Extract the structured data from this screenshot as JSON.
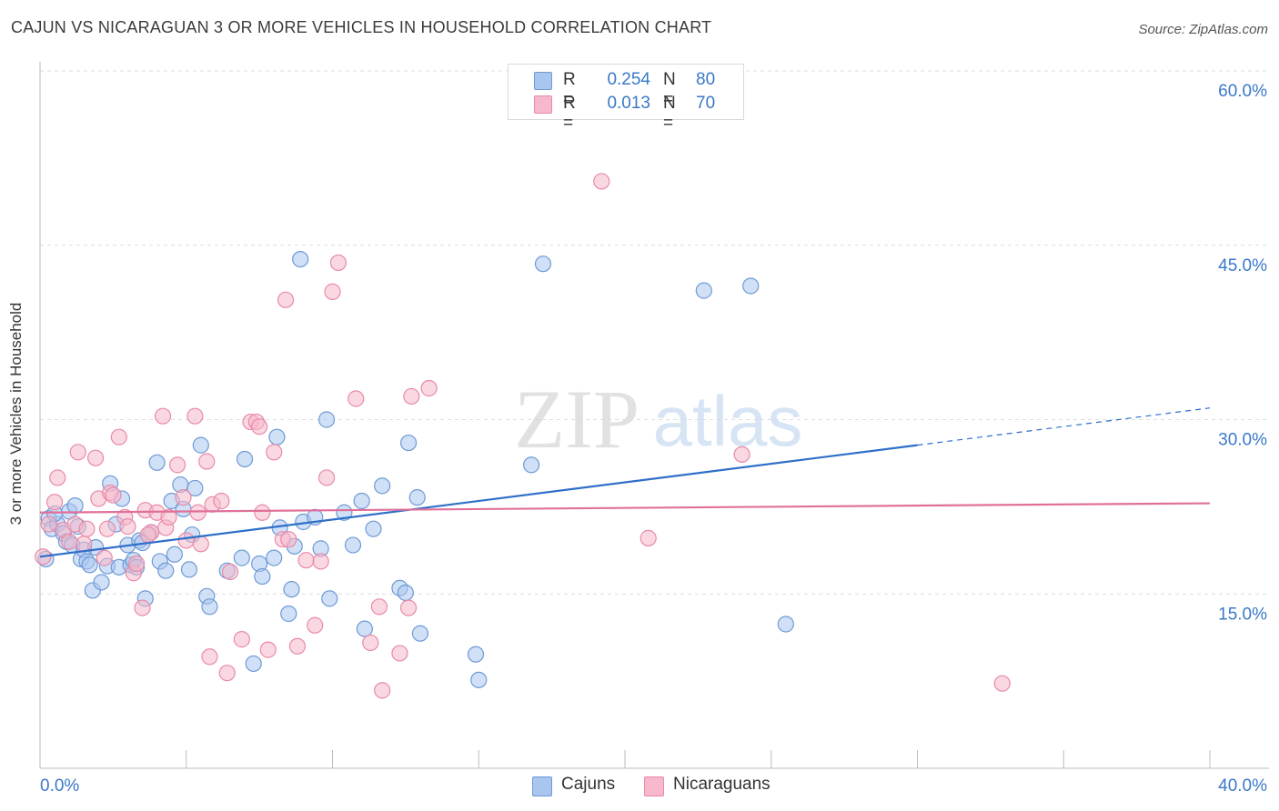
{
  "header": {
    "title": "CAJUN VS NICARAGUAN 3 OR MORE VEHICLES IN HOUSEHOLD CORRELATION CHART",
    "source": "Source: ZipAtlas.com"
  },
  "watermark": {
    "zip": "ZIP",
    "atlas": "atlas"
  },
  "legend": {
    "rows": [
      {
        "r_label": "R =",
        "r_value": "0.254",
        "n_label": "N =",
        "n_value": "80",
        "color": "#a9c6ef"
      },
      {
        "r_label": "R =",
        "r_value": "0.013",
        "n_label": "N =",
        "n_value": "70",
        "color": "#f6b8ca"
      }
    ]
  },
  "colors": {
    "cajun_fill": "#a9c6ef",
    "cajun_stroke": "#6f9ad6",
    "cajun_line": "#2f6fc9",
    "nicaraguan_fill": "#f6b8ca",
    "nicaraguan_stroke": "#e88aa8",
    "nicaraguan_line": "#e0709a",
    "axis_text": "#3a78c9",
    "grid": "#dcdcdc"
  },
  "chart_data": {
    "type": "scatter",
    "title": "CAJUN VS NICARAGUAN 3 OR MORE VEHICLES IN HOUSEHOLD CORRELATION CHART",
    "ylabel": "3 or more Vehicles in Household",
    "xlabel": "",
    "xlim": [
      0,
      40
    ],
    "ylim": [
      0,
      60
    ],
    "x_tick_labels": [
      "0.0%",
      "40.0%"
    ],
    "y_ticks": [
      15,
      30,
      45,
      60
    ],
    "y_tick_labels": [
      "15.0%",
      "30.0%",
      "45.0%",
      "60.0%"
    ],
    "grid": true,
    "legend_position": "top-center",
    "series": [
      {
        "name": "Cajuns",
        "trend": {
          "x0": 0,
          "y0": 18.2,
          "x1": 30,
          "y1": 27.8,
          "dash_to_x": 40,
          "dash_to_y": 31.0
        },
        "points": [
          [
            0.2,
            18.0
          ],
          [
            0.3,
            21.5
          ],
          [
            0.4,
            20.6
          ],
          [
            0.6,
            21.0
          ],
          [
            0.8,
            20.2
          ],
          [
            0.9,
            19.5
          ],
          [
            1.0,
            22.1
          ],
          [
            1.1,
            19.2
          ],
          [
            1.2,
            22.6
          ],
          [
            1.4,
            18.0
          ],
          [
            1.5,
            18.8
          ],
          [
            1.6,
            17.8
          ],
          [
            1.7,
            17.5
          ],
          [
            1.8,
            15.3
          ],
          [
            1.9,
            19.0
          ],
          [
            2.1,
            16.0
          ],
          [
            2.3,
            17.4
          ],
          [
            2.4,
            24.5
          ],
          [
            2.6,
            21.0
          ],
          [
            2.7,
            17.3
          ],
          [
            2.8,
            23.2
          ],
          [
            3.0,
            19.2
          ],
          [
            3.1,
            17.5
          ],
          [
            3.2,
            17.9
          ],
          [
            3.3,
            17.3
          ],
          [
            3.4,
            19.6
          ],
          [
            3.6,
            14.6
          ],
          [
            3.8,
            20.3
          ],
          [
            4.0,
            26.3
          ],
          [
            4.1,
            17.8
          ],
          [
            4.3,
            17.0
          ],
          [
            4.5,
            23.0
          ],
          [
            4.6,
            18.4
          ],
          [
            4.8,
            24.4
          ],
          [
            4.9,
            22.3
          ],
          [
            5.1,
            17.1
          ],
          [
            5.3,
            24.1
          ],
          [
            5.5,
            27.8
          ],
          [
            5.7,
            14.8
          ],
          [
            5.8,
            13.9
          ],
          [
            6.4,
            17.0
          ],
          [
            6.9,
            18.1
          ],
          [
            7.0,
            26.6
          ],
          [
            7.3,
            9.0
          ],
          [
            7.5,
            17.6
          ],
          [
            7.6,
            16.5
          ],
          [
            8.0,
            18.1
          ],
          [
            8.1,
            28.5
          ],
          [
            8.2,
            20.7
          ],
          [
            8.5,
            13.3
          ],
          [
            8.6,
            15.4
          ],
          [
            8.7,
            19.1
          ],
          [
            8.9,
            43.8
          ],
          [
            9.0,
            21.2
          ],
          [
            9.4,
            21.6
          ],
          [
            9.6,
            18.9
          ],
          [
            9.8,
            30.0
          ],
          [
            9.9,
            14.6
          ],
          [
            10.4,
            22.0
          ],
          [
            10.7,
            19.2
          ],
          [
            11.0,
            23.0
          ],
          [
            11.1,
            12.0
          ],
          [
            11.4,
            20.6
          ],
          [
            11.7,
            24.3
          ],
          [
            12.3,
            15.5
          ],
          [
            12.5,
            15.1
          ],
          [
            12.6,
            28.0
          ],
          [
            12.9,
            23.3
          ],
          [
            13.0,
            11.6
          ],
          [
            14.9,
            9.8
          ],
          [
            15.0,
            7.6
          ],
          [
            16.8,
            26.1
          ],
          [
            17.2,
            43.4
          ],
          [
            22.7,
            41.1
          ],
          [
            24.3,
            41.5
          ],
          [
            25.5,
            12.4
          ],
          [
            0.5,
            21.9
          ],
          [
            1.3,
            20.8
          ],
          [
            3.5,
            19.4
          ],
          [
            5.2,
            20.1
          ]
        ]
      },
      {
        "name": "Nicaraguans",
        "trend": {
          "x0": 0,
          "y0": 22.0,
          "x1": 40,
          "y1": 22.8
        },
        "points": [
          [
            0.1,
            18.2
          ],
          [
            0.3,
            21.0
          ],
          [
            0.5,
            22.9
          ],
          [
            0.6,
            25.0
          ],
          [
            0.8,
            20.5
          ],
          [
            1.0,
            19.5
          ],
          [
            1.2,
            21.0
          ],
          [
            1.3,
            27.2
          ],
          [
            1.5,
            19.3
          ],
          [
            1.6,
            20.6
          ],
          [
            1.9,
            26.7
          ],
          [
            2.0,
            23.2
          ],
          [
            2.2,
            18.1
          ],
          [
            2.3,
            20.6
          ],
          [
            2.4,
            23.7
          ],
          [
            2.5,
            23.5
          ],
          [
            2.7,
            28.5
          ],
          [
            2.9,
            21.6
          ],
          [
            3.0,
            20.8
          ],
          [
            3.2,
            16.8
          ],
          [
            3.3,
            17.6
          ],
          [
            3.5,
            13.8
          ],
          [
            3.6,
            22.2
          ],
          [
            3.8,
            20.3
          ],
          [
            4.0,
            22.0
          ],
          [
            4.2,
            30.3
          ],
          [
            4.3,
            20.7
          ],
          [
            4.4,
            21.6
          ],
          [
            4.7,
            26.1
          ],
          [
            4.9,
            23.3
          ],
          [
            5.0,
            19.6
          ],
          [
            5.3,
            30.3
          ],
          [
            5.4,
            22.0
          ],
          [
            5.5,
            19.3
          ],
          [
            5.7,
            26.4
          ],
          [
            5.8,
            9.6
          ],
          [
            5.9,
            22.7
          ],
          [
            6.2,
            23.0
          ],
          [
            6.4,
            8.2
          ],
          [
            6.5,
            16.9
          ],
          [
            6.9,
            11.1
          ],
          [
            7.2,
            29.8
          ],
          [
            7.4,
            29.8
          ],
          [
            7.6,
            22.0
          ],
          [
            7.8,
            10.2
          ],
          [
            8.0,
            27.2
          ],
          [
            8.3,
            19.7
          ],
          [
            8.4,
            40.3
          ],
          [
            8.5,
            19.7
          ],
          [
            8.8,
            10.5
          ],
          [
            9.1,
            17.9
          ],
          [
            9.4,
            12.3
          ],
          [
            9.6,
            17.8
          ],
          [
            9.8,
            25.0
          ],
          [
            10.0,
            41.0
          ],
          [
            10.2,
            43.5
          ],
          [
            10.8,
            31.8
          ],
          [
            11.3,
            10.8
          ],
          [
            11.6,
            13.9
          ],
          [
            11.7,
            6.7
          ],
          [
            12.3,
            9.9
          ],
          [
            12.6,
            13.8
          ],
          [
            12.7,
            32.0
          ],
          [
            13.3,
            32.7
          ],
          [
            19.2,
            50.5
          ],
          [
            20.8,
            19.8
          ],
          [
            24.0,
            27.0
          ],
          [
            32.9,
            7.3
          ],
          [
            7.5,
            29.4
          ],
          [
            3.7,
            20.1
          ]
        ]
      }
    ]
  }
}
